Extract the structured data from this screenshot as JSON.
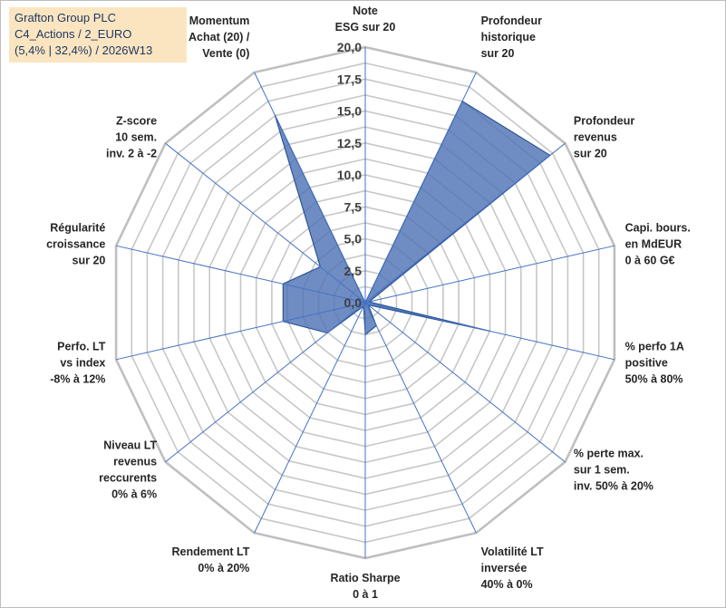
{
  "title_box": {
    "line1": "Grafton Group PLC",
    "line2": "C4_Actions / 2_EURO",
    "line3": "(5,4% | 32,4%) / 2026W13"
  },
  "colors": {
    "area_fill": "#4f74b5",
    "spoke": "#4472c4",
    "grid": "#c7c7c7",
    "title_bg": "#fbe5c0"
  },
  "chart_data": {
    "type": "radar",
    "title": "Grafton Group PLC",
    "r_range": [
      0,
      20
    ],
    "grid_step": 1.25,
    "tick_labels": [
      "0,0",
      "2,5",
      "5,0",
      "7,5",
      "10,0",
      "12,5",
      "15,0",
      "17,5",
      "20,0"
    ],
    "tick_values": [
      0,
      2.5,
      5,
      7.5,
      10,
      12.5,
      15,
      17.5,
      20
    ],
    "axes": [
      {
        "lines": [
          "Note",
          "ESG sur 20"
        ],
        "value": 0
      },
      {
        "lines": [
          "Profondeur",
          "historique",
          "sur 20"
        ],
        "value": 17.5
      },
      {
        "lines": [
          "Profondeur",
          "revenus",
          "sur 20"
        ],
        "value": 18.5
      },
      {
        "lines": [
          "Capi. bours.",
          "en MdEUR",
          "0 à 60 G€"
        ],
        "value": 0.3
      },
      {
        "lines": [
          "% perfo 1A",
          "positive",
          "50% à 80%"
        ],
        "value": 10.0
      },
      {
        "lines": [
          "% perte max.",
          "sur 1 sem.",
          "inv. 50% à 20%"
        ],
        "value": 0.3
      },
      {
        "lines": [
          "Volatilité LT",
          "inversée",
          "40% à 0%"
        ],
        "value": 2.0
      },
      {
        "lines": [
          "Ratio Sharpe",
          "0 à 1"
        ],
        "value": 2.5
      },
      {
        "lines": [
          "Rendement LT",
          "0% à 20%"
        ],
        "value": 0.3
      },
      {
        "lines": [
          "Niveau LT",
          "revenus",
          "reccurents",
          "0% à 6%"
        ],
        "value": 3.8
      },
      {
        "lines": [
          "Perfo. LT",
          "vs index",
          "-8% à 12%"
        ],
        "value": 6.6
      },
      {
        "lines": [
          "Régularité",
          "croissance",
          "sur 20"
        ],
        "value": 6.6
      },
      {
        "lines": [
          "Z-score",
          "10 sem.",
          "inv. 2 à -2"
        ],
        "value": 4.5
      },
      {
        "lines": [
          "Momentum",
          "Achat (20) /",
          "Vente (0)"
        ],
        "value": 16.3
      }
    ]
  }
}
